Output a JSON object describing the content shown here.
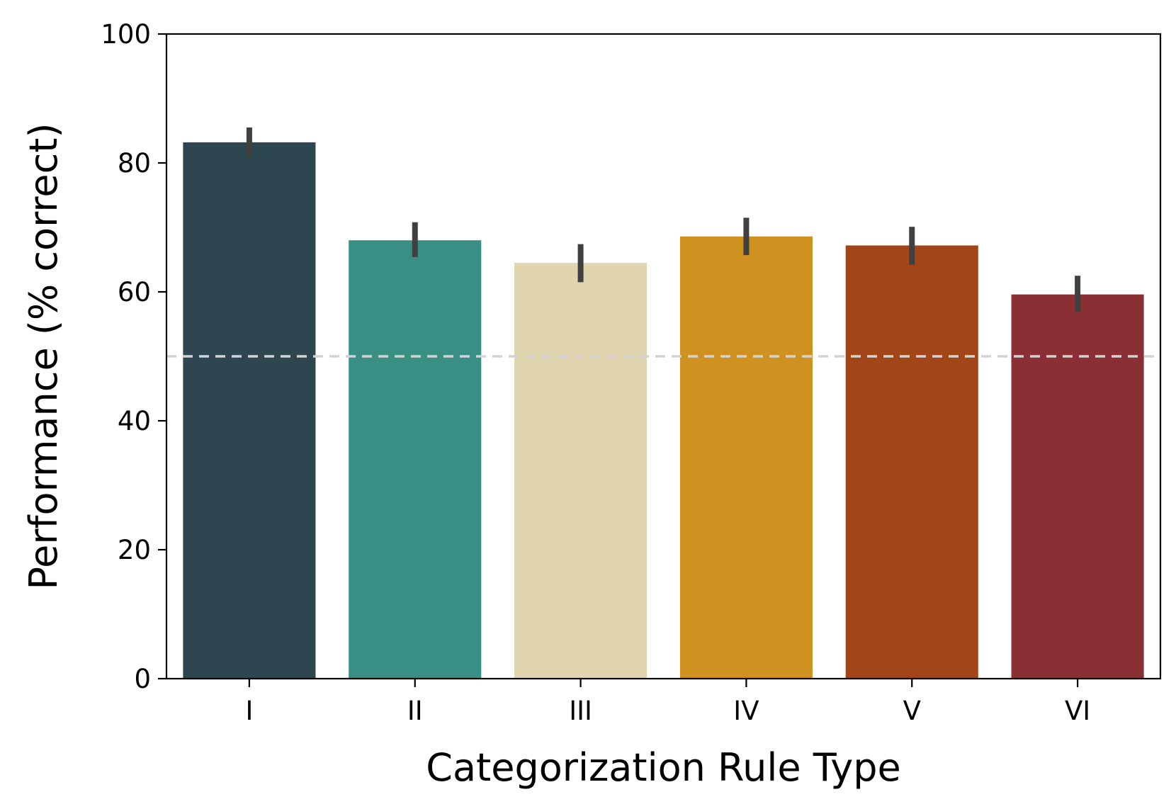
{
  "chart_data": {
    "type": "bar",
    "title": "",
    "xlabel": "Categorization Rule Type",
    "ylabel": "Performance (% correct)",
    "categories": [
      "I",
      "II",
      "III",
      "IV",
      "V",
      "VI"
    ],
    "values": [
      83.2,
      68.0,
      64.5,
      68.6,
      67.2,
      59.6
    ],
    "error_bars": [
      {
        "low": 81.0,
        "high": 85.5
      },
      {
        "low": 65.4,
        "high": 70.8
      },
      {
        "low": 61.5,
        "high": 67.4
      },
      {
        "low": 65.7,
        "high": 71.5
      },
      {
        "low": 64.2,
        "high": 70.1
      },
      {
        "low": 56.9,
        "high": 62.5
      }
    ],
    "bar_colors": [
      "#2d4650",
      "#3a8f84",
      "#e1d5af",
      "#cf9120",
      "#a24519",
      "#8a3035"
    ],
    "error_bar_color": "#404040",
    "reference_line": {
      "y": 50,
      "style": "dashed",
      "color": "#d3d3d3"
    },
    "ylim": [
      0,
      100
    ],
    "yticks": [
      0,
      20,
      40,
      60,
      80,
      100
    ],
    "grid": false,
    "legend": "none"
  }
}
